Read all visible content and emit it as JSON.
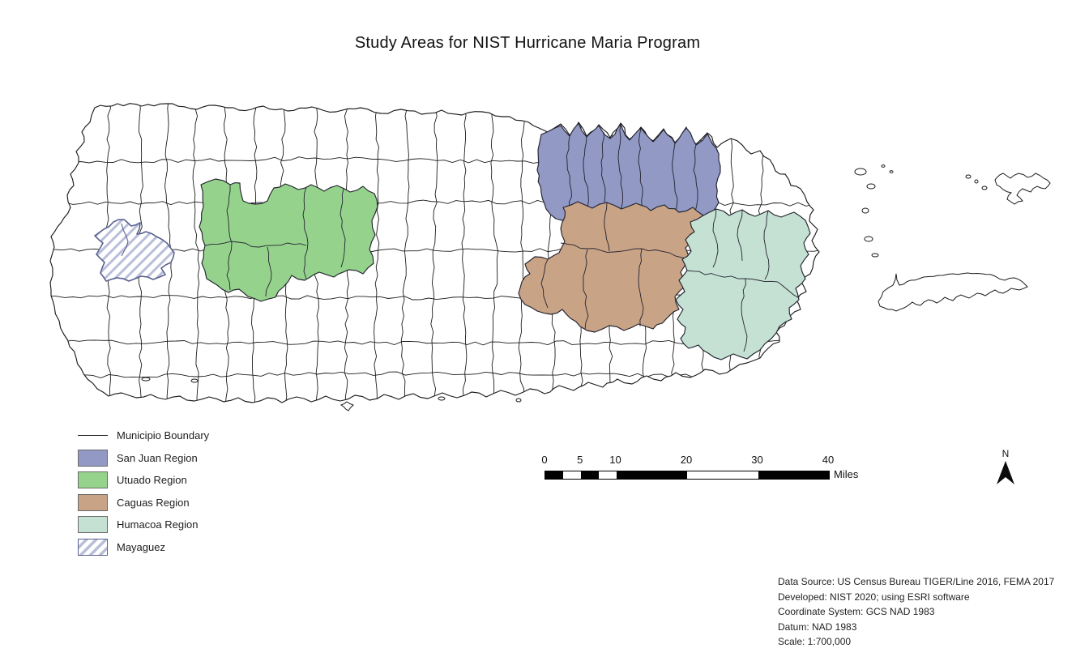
{
  "title": "Study Areas for NIST Hurricane Maria Program",
  "legend": {
    "items": [
      {
        "label": "Municipio Boundary",
        "type": "line",
        "color": "#1b1b1b"
      },
      {
        "label": "San Juan Region",
        "type": "fill",
        "color": "#9199C4"
      },
      {
        "label": "Utuado Region",
        "type": "fill",
        "color": "#95D38D"
      },
      {
        "label": "Caguas Region",
        "type": "fill",
        "color": "#C8A385"
      },
      {
        "label": "Humacoa Region",
        "type": "fill",
        "color": "#C4E1D4"
      },
      {
        "label": "Mayaguez",
        "type": "hatch",
        "color": "#B9BFD9",
        "border": "#59618F"
      }
    ]
  },
  "scale_bar": {
    "ticks": [
      {
        "label": "0",
        "mile": 0
      },
      {
        "label": "5",
        "mile": 5
      },
      {
        "label": "10",
        "mile": 10
      },
      {
        "label": "20",
        "mile": 20
      },
      {
        "label": "30",
        "mile": 30
      },
      {
        "label": "40",
        "mile": 40
      }
    ],
    "unit": "Miles"
  },
  "north_arrow": {
    "label": "N"
  },
  "notes": {
    "lines": [
      "Data Source: US Census Bureau TIGER/Line 2016, FEMA 2017",
      "Developed: NIST 2020; using ESRI software",
      "Coordinate System: GCS NAD 1983",
      "Datum: NAD 1983",
      "Scale: 1:700,000"
    ]
  },
  "map": {
    "boundary_color": "#1b1b1b",
    "water_color": "#ffffff",
    "land_color": "#ffffff"
  }
}
